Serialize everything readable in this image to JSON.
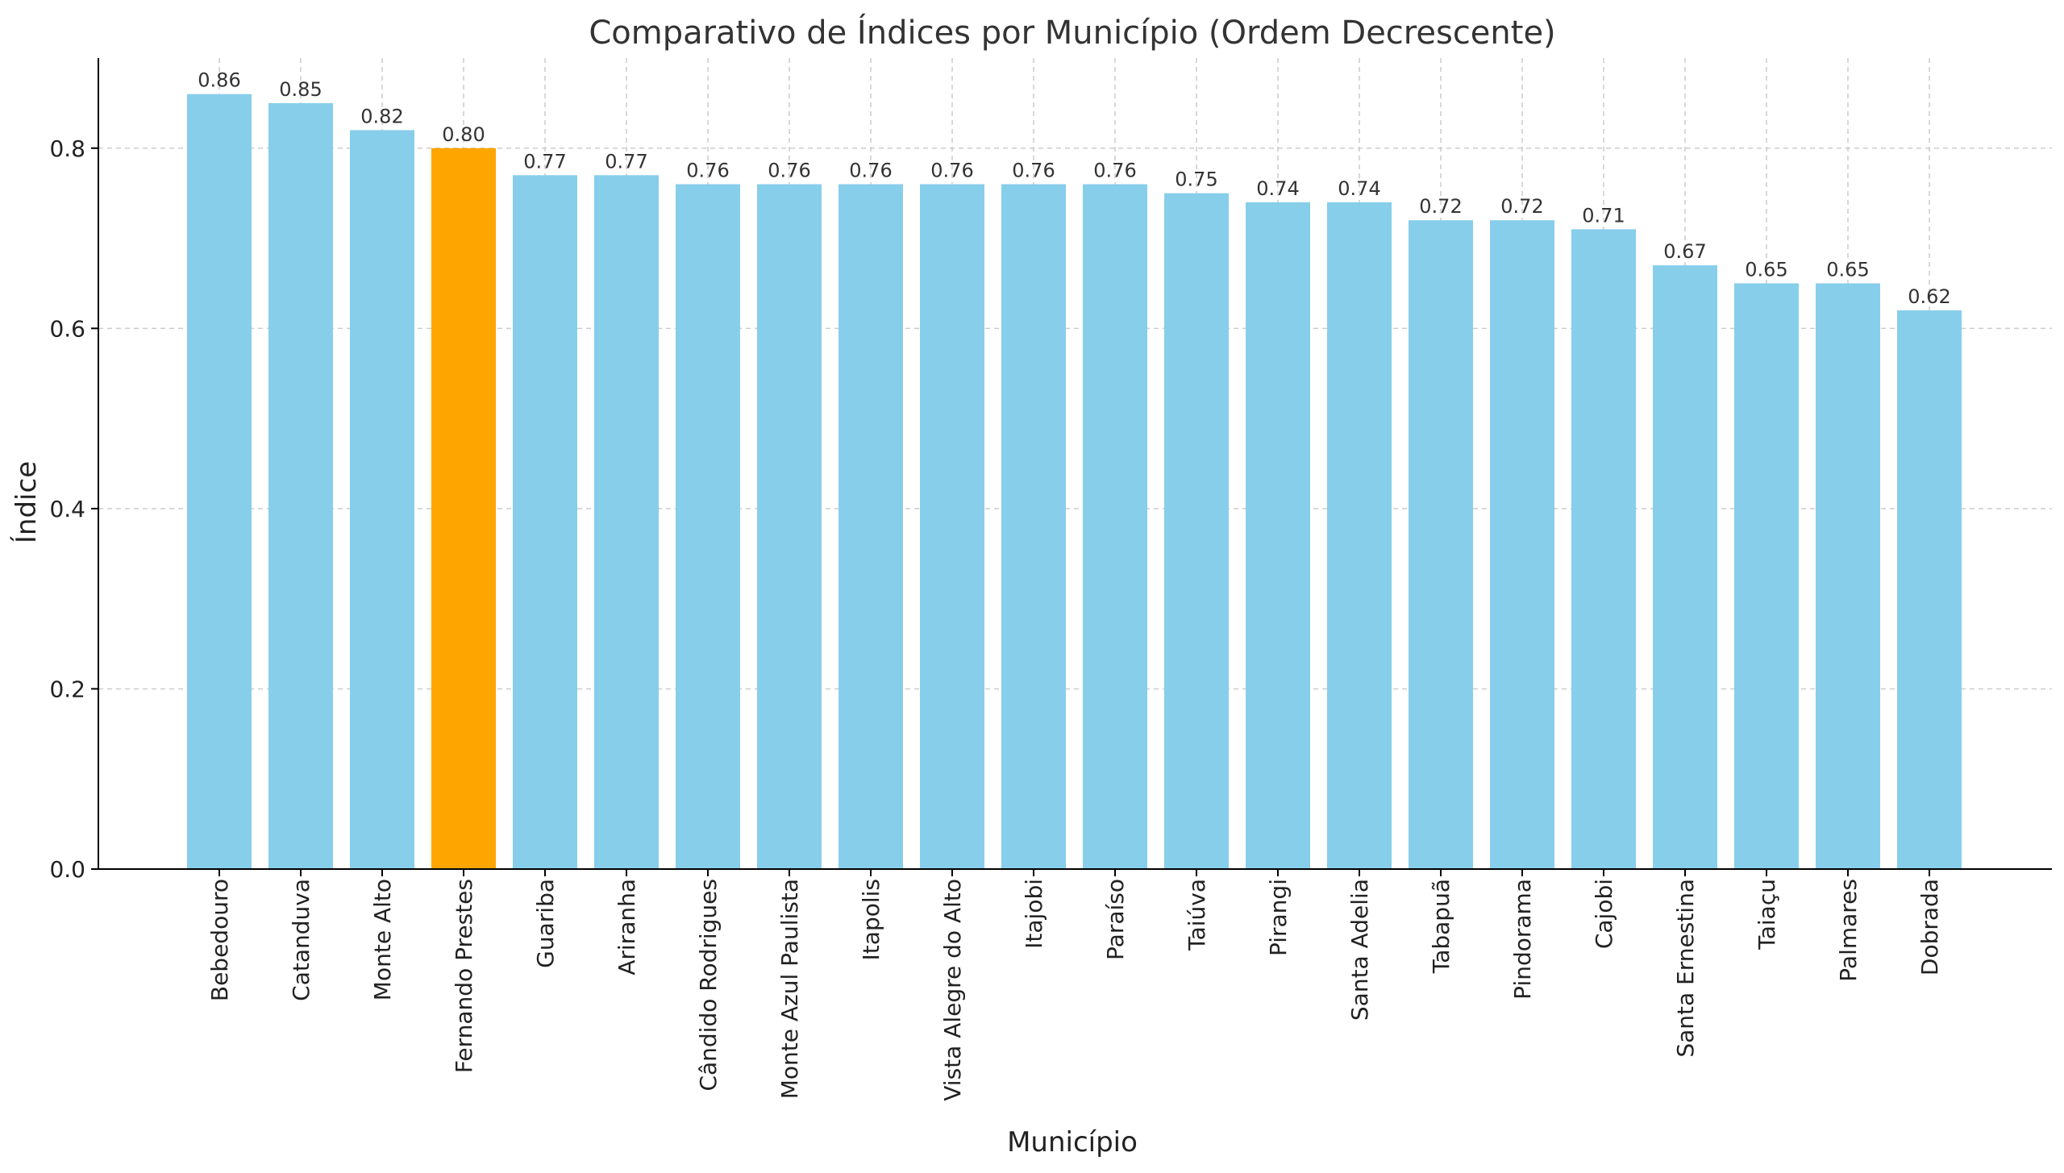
{
  "chart_data": {
    "type": "bar",
    "title": "Comparativo de Índices por Município (Ordem Decrescente)",
    "xlabel": "Município",
    "ylabel": "Índice",
    "ylim": [
      0,
      0.9
    ],
    "yticks": [
      "0.0",
      "0.2",
      "0.4",
      "0.6",
      "0.8"
    ],
    "grid": true,
    "bar_color": "#87CEEB",
    "highlight_color": "#FFA500",
    "highlight_category": "Fernando Prestes",
    "categories": [
      "Bebedouro",
      "Catanduva",
      "Monte Alto",
      "Fernando Prestes",
      "Guariba",
      "Ariranha",
      "Cândido Rodrigues",
      "Monte Azul Paulista",
      "Itapolis",
      "Vista Alegre do Alto",
      "Itajobi",
      "Paraíso",
      "Taiúva",
      "Pirangi",
      "Santa Adelia",
      "Tabapuã",
      "Pindorama",
      "Cajobi",
      "Santa Ernestina",
      "Taiaçu",
      "Palmares",
      "Dobrada"
    ],
    "values": [
      0.86,
      0.85,
      0.82,
      0.8,
      0.77,
      0.77,
      0.76,
      0.76,
      0.76,
      0.76,
      0.76,
      0.76,
      0.75,
      0.74,
      0.74,
      0.72,
      0.72,
      0.71,
      0.67,
      0.65,
      0.65,
      0.62
    ],
    "value_labels": [
      "0.86",
      "0.85",
      "0.82",
      "0.80",
      "0.77",
      "0.77",
      "0.76",
      "0.76",
      "0.76",
      "0.76",
      "0.76",
      "0.76",
      "0.75",
      "0.74",
      "0.74",
      "0.72",
      "0.72",
      "0.71",
      "0.67",
      "0.65",
      "0.65",
      "0.62"
    ]
  }
}
